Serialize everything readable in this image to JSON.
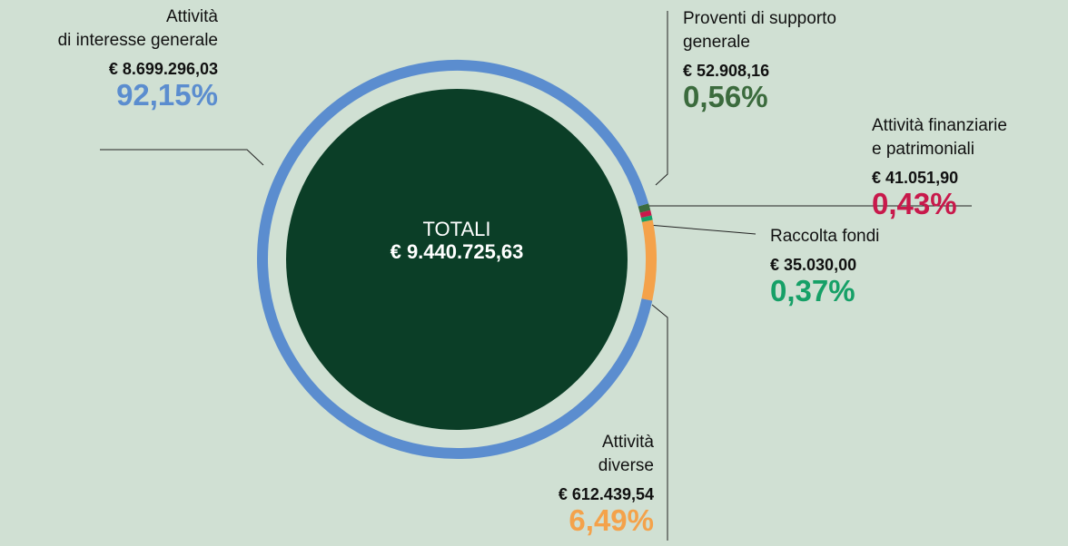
{
  "chart_data": {
    "type": "pie",
    "categories": [
      "Proventi di supporto\ngenerale",
      "Attività finanziarie\ne patrimoniali",
      "Raccolta fondi",
      "Attività\ndiverse",
      "Attività\ndi interesse generale"
    ],
    "values": [
      0.56,
      0.43,
      0.37,
      6.49,
      92.15
    ],
    "value_labels": [
      "0,56%",
      "0,43%",
      "0,37%",
      "6,49%",
      "92,15%"
    ],
    "amounts": [
      "€ 52.908,16",
      "€ 41.051,90",
      "€ 35.030,00",
      "€ 612.439,54",
      "€ 8.699.296,03"
    ],
    "colors": [
      "#3b6b3d",
      "#c8194b",
      "#16a067",
      "#f4a24a",
      "#5b8dcf"
    ],
    "center_title": "TOTALI",
    "center_value": "€ 9.440.725,63"
  }
}
